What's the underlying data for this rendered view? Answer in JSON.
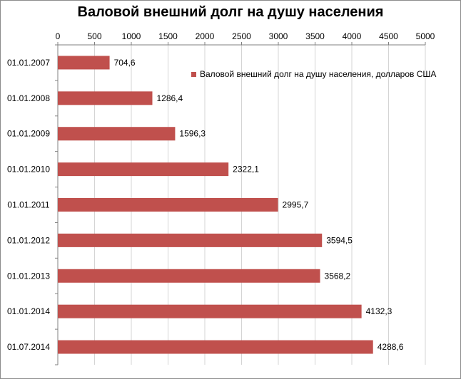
{
  "chart_data": {
    "type": "bar",
    "orientation": "horizontal",
    "title": "Валовой внешний долг на душу населения",
    "xlabel": "",
    "ylabel": "",
    "xlim": [
      0,
      5000
    ],
    "x_ticks": [
      "0",
      "500",
      "1000",
      "1500",
      "2000",
      "2500",
      "3000",
      "3500",
      "4000",
      "4500",
      "5000"
    ],
    "x_axis_position": "top",
    "grid": true,
    "legend_position": "top-right",
    "categories": [
      "01.01.2007",
      "01.01.2008",
      "01.01.2009",
      "01.01.2010",
      "01.01.2011",
      "01.01.2012",
      "01.01.2013",
      "01.01.2014",
      "01.07.2014"
    ],
    "series": [
      {
        "name": "Валовой внешний  долг на душу населения, долларов США",
        "color": "#c0504d",
        "values": [
          704.6,
          1286.4,
          1596.3,
          2322.1,
          2995.7,
          3594.5,
          3568.2,
          4132.3,
          4288.6
        ],
        "labels": [
          "704,6",
          "1286,4",
          "1596,3",
          "2322,1",
          "2995,7",
          "3594,5",
          "3568,2",
          "4132,3",
          "4288,6"
        ]
      }
    ]
  }
}
